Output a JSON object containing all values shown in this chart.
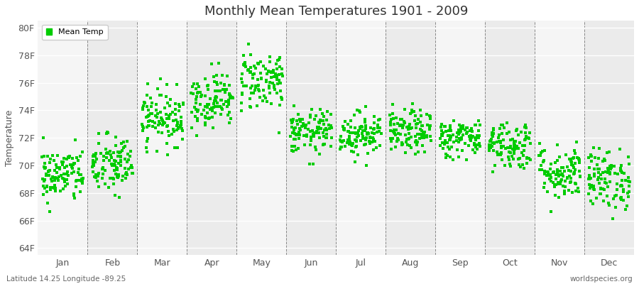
{
  "title": "Monthly Mean Temperatures 1901 - 2009",
  "ylabel": "Temperature",
  "xlabel_labels": [
    "Jan",
    "Feb",
    "Mar",
    "Apr",
    "May",
    "Jun",
    "Jul",
    "Aug",
    "Sep",
    "Oct",
    "Nov",
    "Dec"
  ],
  "ytick_labels": [
    "64F",
    "66F",
    "68F",
    "70F",
    "72F",
    "74F",
    "76F",
    "78F",
    "80F"
  ],
  "ytick_values": [
    64,
    66,
    68,
    70,
    72,
    74,
    76,
    78,
    80
  ],
  "ylim": [
    63.5,
    80.5
  ],
  "dot_color": "#00CC00",
  "bg_color": "#FFFFFF",
  "plot_bg_color": "#EBEBEB",
  "legend_label": "Mean Temp",
  "bottom_left": "Latitude 14.25 Longitude -89.25",
  "bottom_right": "worldspecies.org",
  "years": 109,
  "seed": 42,
  "monthly_means": [
    69.3,
    70.0,
    73.5,
    74.8,
    76.2,
    72.4,
    72.3,
    72.4,
    72.0,
    71.5,
    69.5,
    69.0
  ],
  "monthly_stds": [
    1.0,
    1.1,
    1.0,
    1.0,
    1.1,
    0.8,
    0.8,
    0.8,
    0.7,
    0.9,
    1.0,
    1.1
  ]
}
